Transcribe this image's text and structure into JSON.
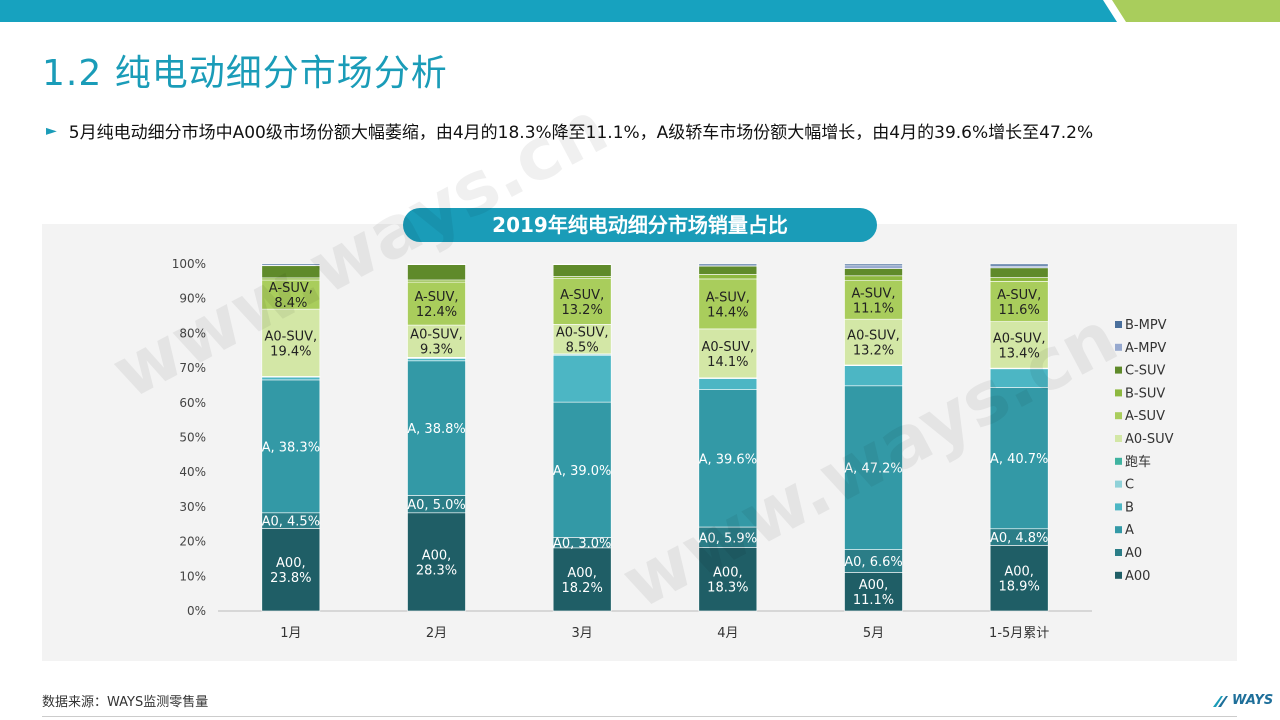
{
  "page": {
    "title": "1.2 纯电动细分市场分析",
    "bullet": "5月纯电动细分市场中A00级市场份额大幅萎缩，由4月的18.3%降至11.1%，A级轿车市场份额大幅增长，由4月的39.6%增长至47.2%",
    "source": "数据来源：WAYS监测零售量",
    "brand": "WAYS",
    "watermark": "www.ways.cn",
    "colors": {
      "accent": "#1a9cb8",
      "accent_green": "#a8c86a"
    }
  },
  "chart_data": {
    "type": "bar",
    "stacked": true,
    "title": "2019年纯电动细分市场销量占比",
    "categories": [
      "1月",
      "2月",
      "3月",
      "4月",
      "5月",
      "1-5月累计"
    ],
    "ylim": [
      0,
      100
    ],
    "yticks": [
      "0%",
      "10%",
      "20%",
      "30%",
      "40%",
      "50%",
      "60%",
      "70%",
      "80%",
      "90%",
      "100%"
    ],
    "legend_position": "right",
    "series": [
      {
        "name": "A00",
        "color": "#1f5e66",
        "values": [
          23.8,
          28.3,
          18.2,
          18.3,
          11.1,
          18.9
        ],
        "labels": [
          "A00,\n23.8%",
          "A00,\n28.3%",
          "A00,\n18.2%",
          "A00,\n18.3%",
          "A00,\n11.1%",
          "A00,\n18.9%"
        ]
      },
      {
        "name": "A0",
        "color": "#2b7d87",
        "values": [
          4.5,
          5.0,
          3.0,
          5.9,
          6.6,
          4.8
        ],
        "labels": [
          "A0, 4.5%",
          "A0, 5.0%",
          "A0, 3.0%",
          "A0, 5.9%",
          "A0, 6.6%",
          "A0, 4.8%"
        ]
      },
      {
        "name": "A",
        "color": "#3399a6",
        "values": [
          38.3,
          38.8,
          39.0,
          39.6,
          47.2,
          40.7
        ],
        "labels": [
          "A, 38.3%",
          "A, 38.8%",
          "A, 39.0%",
          "A, 39.6%",
          "A, 47.2%",
          "A, 40.7%"
        ]
      },
      {
        "name": "B",
        "color": "#4cb6c4",
        "values": [
          0.8,
          0.7,
          13.5,
          3.2,
          5.8,
          5.4
        ],
        "labels": []
      },
      {
        "name": "C",
        "color": "#8fd1d8",
        "values": [
          0.1,
          0.2,
          0.3,
          0.1,
          0.1,
          0.1
        ],
        "labels": []
      },
      {
        "name": "跑车",
        "color": "#3fb3a0",
        "values": [
          0.1,
          0.1,
          0.1,
          0.1,
          0.1,
          0.1
        ],
        "labels": []
      },
      {
        "name": "A0-SUV",
        "color": "#d3e7a6",
        "values": [
          19.4,
          9.3,
          8.5,
          14.1,
          13.2,
          13.4
        ],
        "labels": [
          "A0-SUV,\n19.4%",
          "A0-SUV,\n9.3%",
          "A0-SUV,\n8.5%",
          "A0-SUV,\n14.1%",
          "A0-SUV,\n13.2%",
          "A0-SUV,\n13.4%"
        ]
      },
      {
        "name": "A-SUV",
        "color": "#a9cd5c",
        "values": [
          8.4,
          12.4,
          13.2,
          14.4,
          11.1,
          11.6
        ],
        "labels": [
          "A-SUV,\n8.4%",
          "A-SUV,\n12.4%",
          "A-SUV,\n13.2%",
          "A-SUV,\n14.4%",
          "A-SUV,\n11.1%",
          "A-SUV,\n11.6%"
        ]
      },
      {
        "name": "B-SUV",
        "color": "#8db83f",
        "values": [
          0.6,
          0.6,
          0.6,
          1.3,
          1.4,
          1.1
        ],
        "labels": []
      },
      {
        "name": "C-SUV",
        "color": "#5f8a2a",
        "values": [
          3.5,
          4.4,
          3.4,
          2.4,
          2.1,
          2.8
        ],
        "labels": []
      },
      {
        "name": "A-MPV",
        "color": "#97a9cf",
        "values": [
          0.1,
          0.1,
          0.1,
          0.1,
          0.8,
          0.5
        ],
        "labels": []
      },
      {
        "name": "B-MPV",
        "color": "#4a6f9c",
        "values": [
          0.4,
          0.1,
          0.1,
          0.5,
          0.5,
          0.6
        ],
        "labels": []
      }
    ],
    "legend_order": [
      "B-MPV",
      "A-MPV",
      "C-SUV",
      "B-SUV",
      "A-SUV",
      "A0-SUV",
      "跑车",
      "C",
      "B",
      "A",
      "A0",
      "A00"
    ]
  }
}
